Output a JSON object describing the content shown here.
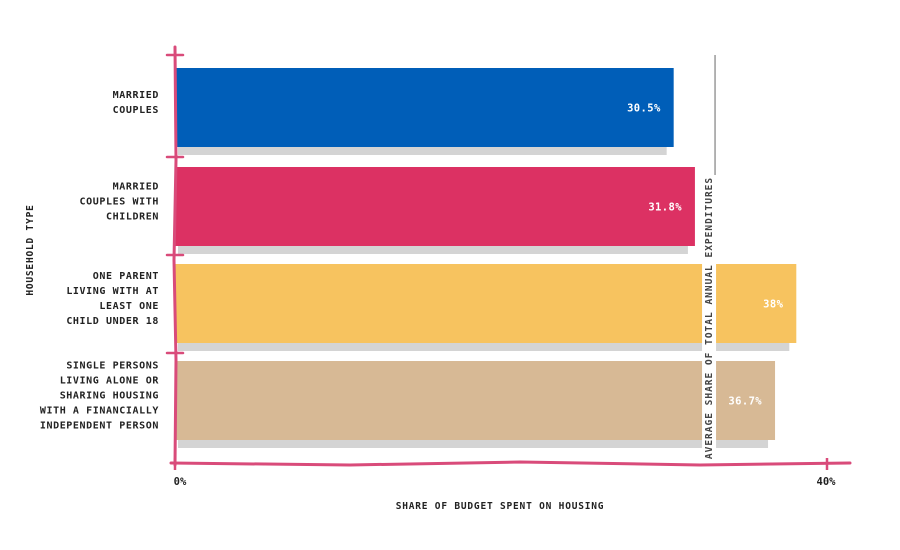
{
  "chart_data": {
    "type": "bar",
    "orientation": "horizontal",
    "categories": [
      [
        "MARRIED",
        "COUPLES"
      ],
      [
        "MARRIED",
        "COUPLES WITH",
        "CHILDREN"
      ],
      [
        "ONE PARENT",
        "LIVING WITH AT",
        "LEAST ONE",
        "CHILD UNDER 18"
      ],
      [
        "SINGLE PERSONS",
        "LIVING ALONE OR",
        "SHARING HOUSING",
        "WITH A FINANCIALLY",
        "INDEPENDENT PERSON"
      ]
    ],
    "values": [
      30.5,
      31.8,
      38,
      36.7
    ],
    "value_labels": [
      "30.5%",
      "31.8%",
      "38%",
      "36.7%"
    ],
    "colors": [
      "#005eb8",
      "#dc3163",
      "#f7c35f",
      "#d7b995"
    ],
    "axis_color": "#d94b7a",
    "shadow_color": "#d4d4d4",
    "xlim": [
      0,
      40
    ],
    "x_ticks": [
      "0%",
      "40%"
    ],
    "xlabel": "SHARE OF BUDGET SPENT ON HOUSING",
    "ylabel": "HOUSEHOLD TYPE",
    "reference_line": {
      "value": 33,
      "label": "AVERAGE SHARE OF TOTAL ANNUAL EXPENDITURES",
      "color": "#9a9a9a"
    },
    "grid": false
  }
}
